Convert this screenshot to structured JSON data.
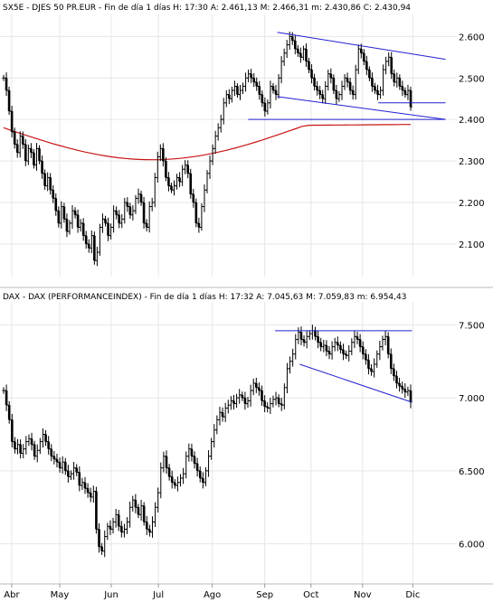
{
  "chart_data": [
    {
      "type": "ohlc",
      "header": "SX5E - DJES 50 PR.EUR - Fin de día 1 días H: 17:30 A: 2.461,13 M: 2.466,31 m: 2.430,86 C: 2.430,94",
      "symbol": "SX5E",
      "name": "DJES 50 PR.EUR",
      "timeframe": "Fin de día 1 días",
      "last_bar": {
        "H": "17:30",
        "A": "2.461,13",
        "M": "2.466,31",
        "m": "2.430,86",
        "C": "2.430,94"
      },
      "ylim": [
        2030,
        2640
      ],
      "y_ticks": [
        {
          "value": 2600,
          "label": "2.600"
        },
        {
          "value": 2500,
          "label": "2.500"
        },
        {
          "value": 2400,
          "label": "2.400"
        },
        {
          "value": 2300,
          "label": "2.300"
        },
        {
          "value": 2200,
          "label": "2.200"
        },
        {
          "value": 2100,
          "label": "2.100"
        }
      ],
      "closes": [
        2500,
        2470,
        2420,
        2370,
        2340,
        2320,
        2360,
        2340,
        2300,
        2330,
        2320,
        2290,
        2330,
        2300,
        2270,
        2240,
        2260,
        2230,
        2210,
        2180,
        2150,
        2190,
        2160,
        2130,
        2150,
        2180,
        2170,
        2140,
        2150,
        2120,
        2100,
        2090,
        2120,
        2060,
        2080,
        2140,
        2160,
        2150,
        2120,
        2140,
        2180,
        2170,
        2150,
        2160,
        2200,
        2190,
        2170,
        2180,
        2210,
        2220,
        2200,
        2150,
        2140,
        2190,
        2200,
        2260,
        2310,
        2330,
        2300,
        2260,
        2240,
        2230,
        2240,
        2260,
        2250,
        2280,
        2290,
        2270,
        2220,
        2200,
        2150,
        2140,
        2190,
        2230,
        2270,
        2300,
        2330,
        2360,
        2380,
        2400,
        2440,
        2460,
        2450,
        2470,
        2480,
        2460,
        2470,
        2480,
        2500,
        2510,
        2500,
        2490,
        2480,
        2460,
        2440,
        2420,
        2440,
        2480,
        2470,
        2460,
        2500,
        2540,
        2560,
        2580,
        2600,
        2590,
        2570,
        2560,
        2550,
        2570,
        2540,
        2520,
        2500,
        2480,
        2470,
        2460,
        2450,
        2480,
        2510,
        2500,
        2470,
        2450,
        2460,
        2480,
        2500,
        2490,
        2470,
        2460,
        2520,
        2570,
        2560,
        2540,
        2520,
        2500,
        2480,
        2470,
        2460,
        2470,
        2520,
        2540,
        2550,
        2510,
        2490,
        2500,
        2480,
        2470,
        2460,
        2470,
        2430
      ],
      "moving_average": {
        "start": 2380,
        "dip": 2300,
        "end": 2388
      },
      "trendlines": [
        {
          "x1_frac": 0.61,
          "y1": 2610,
          "x2_frac": 0.985,
          "y2": 2545
        },
        {
          "x1_frac": 0.61,
          "y1": 2455,
          "x2_frac": 0.985,
          "y2": 2400
        },
        {
          "x1_frac": 0.835,
          "y1": 2440,
          "x2_frac": 0.985,
          "y2": 2440
        },
        {
          "x1_frac": 0.545,
          "y1": 2400,
          "x2_frac": 0.985,
          "y2": 2400
        }
      ]
    },
    {
      "type": "ohlc",
      "header": "DAX - DAX (PERFORMANCEINDEX) - Fin de día 1 días H: 17:32 A: 7.045,63 M: 7.059,83 m: 6.954,43",
      "symbol": "DAX",
      "name": "DAX (PERFORMANCEINDEX)",
      "timeframe": "Fin de día 1 días",
      "last_bar": {
        "H": "17:32",
        "A": "7.045,63",
        "M": "7.059,83",
        "m": "6.954,43"
      },
      "ylim": [
        5750,
        7620
      ],
      "y_ticks": [
        {
          "value": 7500,
          "label": "7.500"
        },
        {
          "value": 7000,
          "label": "7.000"
        },
        {
          "value": 6500,
          "label": "6.500"
        },
        {
          "value": 6000,
          "label": "6.000"
        }
      ],
      "closes": [
        7050,
        6950,
        6850,
        6700,
        6650,
        6680,
        6620,
        6650,
        6700,
        6720,
        6680,
        6600,
        6640,
        6700,
        6750,
        6700,
        6650,
        6600,
        6580,
        6560,
        6520,
        6560,
        6500,
        6460,
        6480,
        6520,
        6490,
        6400,
        6420,
        6380,
        6350,
        6320,
        6360,
        6100,
        5980,
        5950,
        6050,
        6120,
        6100,
        6150,
        6200,
        6120,
        6080,
        6100,
        6150,
        6250,
        6300,
        6250,
        6200,
        6260,
        6150,
        6100,
        6080,
        6150,
        6250,
        6350,
        6520,
        6600,
        6520,
        6460,
        6420,
        6400,
        6420,
        6450,
        6480,
        6600,
        6650,
        6600,
        6550,
        6500,
        6450,
        6420,
        6500,
        6600,
        6700,
        6780,
        6850,
        6900,
        6870,
        6930,
        6950,
        6980,
        6960,
        7000,
        7020,
        7000,
        6960,
        6980,
        7050,
        7100,
        7070,
        7050,
        6980,
        6940,
        6930,
        6960,
        6990,
        7000,
        6960,
        6950,
        7070,
        7200,
        7250,
        7300,
        7400,
        7450,
        7400,
        7380,
        7420,
        7440,
        7460,
        7420,
        7380,
        7350,
        7360,
        7320,
        7300,
        7350,
        7380,
        7360,
        7330,
        7300,
        7290,
        7320,
        7380,
        7420,
        7400,
        7350,
        7300,
        7260,
        7200,
        7180,
        7230,
        7300,
        7350,
        7400,
        7420,
        7300,
        7200,
        7150,
        7100,
        7080,
        7060,
        7040,
        7050,
        6970
      ],
      "trendlines": [
        {
          "x1_frac": 0.605,
          "y1": 7460,
          "x2_frac": 0.91,
          "y2": 7460
        },
        {
          "x1_frac": 0.66,
          "y1": 7230,
          "x2_frac": 0.91,
          "y2": 6970
        }
      ]
    }
  ],
  "x_months": [
    {
      "label": "Abr",
      "frac": 0.018
    },
    {
      "label": "May",
      "frac": 0.125
    },
    {
      "label": "Jun",
      "frac": 0.24
    },
    {
      "label": "Jul",
      "frac": 0.345
    },
    {
      "label": "Ago",
      "frac": 0.465
    },
    {
      "label": "Sep",
      "frac": 0.582
    },
    {
      "label": "Oct",
      "frac": 0.685
    },
    {
      "label": "Nov",
      "frac": 0.8
    },
    {
      "label": "Dic",
      "frac": 0.912
    }
  ]
}
